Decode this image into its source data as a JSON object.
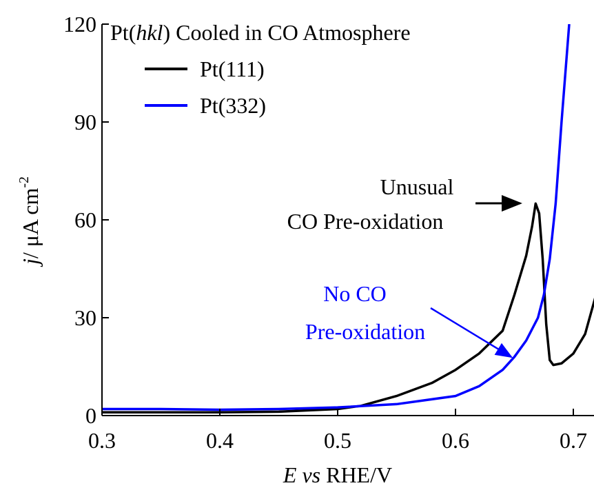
{
  "chart_data": {
    "type": "line",
    "legend_title": [
      "Pt(",
      "hkl",
      ") Cooled in CO Atmosphere"
    ],
    "x_label": [
      "E vs",
      " RHE/V"
    ],
    "y_label": [
      "j",
      "/ μA cm",
      "-2"
    ],
    "annotations": [
      "Unusual",
      "CO Pre-oxidation",
      "No CO",
      "Pre-oxidation"
    ],
    "xlim": [
      0.3,
      0.72
    ],
    "ylim": [
      0,
      120
    ],
    "xticks": [
      0.3,
      0.4,
      0.5,
      0.6,
      0.7
    ],
    "yticks": [
      0,
      30,
      60,
      90,
      120
    ],
    "series": [
      {
        "name": "Pt(111)",
        "color": "#000000",
        "x": [
          0.3,
          0.35,
          0.4,
          0.45,
          0.5,
          0.52,
          0.55,
          0.58,
          0.6,
          0.62,
          0.64,
          0.65,
          0.66,
          0.665,
          0.668,
          0.671,
          0.674,
          0.677,
          0.68,
          0.683,
          0.69,
          0.7,
          0.71,
          0.72
        ],
        "values": [
          1,
          1,
          1,
          1.2,
          2,
          3,
          6,
          10,
          14,
          19,
          26,
          37,
          49,
          58,
          65,
          62,
          48,
          28,
          17,
          15.5,
          16,
          19,
          25,
          38
        ]
      },
      {
        "name": "Pt(332)",
        "color": "#0000ff",
        "x": [
          0.3,
          0.35,
          0.4,
          0.45,
          0.5,
          0.55,
          0.6,
          0.62,
          0.64,
          0.65,
          0.66,
          0.67,
          0.675,
          0.68,
          0.685,
          0.69,
          0.6965
        ],
        "values": [
          2,
          2,
          1.8,
          2,
          2.5,
          3.5,
          6,
          9,
          14,
          18,
          23,
          30,
          37,
          48,
          65,
          90,
          120
        ]
      }
    ]
  }
}
